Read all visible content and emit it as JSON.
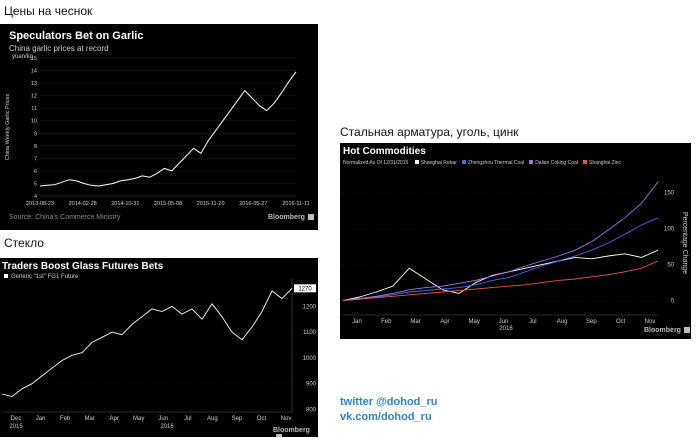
{
  "captions": {
    "garlic": "Цены на чеснок",
    "glass": "Стекло",
    "steel": "Стальная арматура, уголь, цинк"
  },
  "social": {
    "twitter": "twitter @dohod_ru",
    "vk": "vk.com/dohod_ru"
  },
  "colors": {
    "panel_bg": "#000000",
    "line_white": "#ffffff",
    "thermal_coal": "#3d6df2",
    "coking_coal": "#a86ef0",
    "zinc": "#e8553a",
    "social_link": "#2a86c8"
  },
  "garlic": {
    "title": "Speculators Bet on Garlic",
    "subtitle": "China garlic prices at record",
    "unit": "yuan/kg",
    "ylabel": "China Weekly Garlic Prices",
    "source": "Source: China's Commerce Ministry",
    "brand": "Bloomberg"
  },
  "glass": {
    "title": "Traders Boost Glass Futures Bets",
    "legend": "Generic \"1st\" FG1 Future",
    "last_value_label": "1270",
    "brand": "Bloomberg",
    "year_left": "2015",
    "year_mid": "2016"
  },
  "steel": {
    "title": "Hot Commodities",
    "legend_prefix": "Normalized As Of 12/31/2015",
    "ylabel": "Percentage Change",
    "brand": "Bloomberg",
    "year_label": "2016"
  },
  "chart_data": [
    {
      "type": "line",
      "title": "Speculators Bet on Garlic",
      "subtitle": "China garlic prices at record",
      "ylabel": "China Weekly Garlic Prices",
      "yunit": "yuan/kg",
      "x_ticks": [
        "2013-08-23",
        "2014-02-28",
        "2014-10-31",
        "2015-05-08",
        "2015-11-20",
        "2016-05-27",
        "2016-11-11"
      ],
      "y_ticks": [
        4,
        5,
        6,
        7,
        8,
        9,
        10,
        11,
        12,
        13,
        14,
        15
      ],
      "ylim": [
        4,
        15
      ],
      "series": [
        {
          "values": [
            4.8,
            4.85,
            4.9,
            5.1,
            5.3,
            5.2,
            5.0,
            4.85,
            4.8,
            4.9,
            5.0,
            5.2,
            5.3,
            5.4,
            5.6,
            5.5,
            5.8,
            6.2,
            6.0,
            6.6,
            7.2,
            7.8,
            7.4,
            8.4,
            9.2,
            10.0,
            10.8,
            11.6,
            12.4,
            11.8,
            11.2,
            10.8,
            11.4,
            12.2,
            13.1,
            13.9
          ]
        }
      ]
    },
    {
      "type": "line",
      "title": "Traders Boost Glass Futures Bets",
      "x_ticks": [
        "Dec",
        "Jan",
        "Feb",
        "Mar",
        "Apr",
        "May",
        "Jun",
        "Jul",
        "Aug",
        "Sep",
        "Oct",
        "Nov"
      ],
      "y_ticks": [
        800,
        900,
        1000,
        1100,
        1200
      ],
      "ylim": [
        790,
        1310
      ],
      "series": [
        {
          "name": "Generic \"1st\" FG1 Future",
          "values": [
            860,
            850,
            880,
            900,
            930,
            960,
            990,
            1010,
            1020,
            1060,
            1080,
            1100,
            1090,
            1130,
            1160,
            1190,
            1180,
            1200,
            1170,
            1190,
            1150,
            1210,
            1160,
            1100,
            1070,
            1120,
            1180,
            1260,
            1230,
            1270
          ]
        }
      ]
    },
    {
      "type": "line",
      "title": "Hot Commodities",
      "ylabel": "Percentage Change",
      "x_ticks": [
        "Jan",
        "Feb",
        "Mar",
        "Apr",
        "May",
        "Jun",
        "Jul",
        "Aug",
        "Sep",
        "Oct",
        "Nov"
      ],
      "y_ticks": [
        0,
        50,
        100,
        150
      ],
      "ylim": [
        -20,
        180
      ],
      "series": [
        {
          "name": "Shanghai Rebar",
          "values": [
            0,
            5,
            12,
            20,
            45,
            30,
            15,
            10,
            25,
            35,
            40,
            45,
            50,
            55,
            60,
            58,
            62,
            65,
            60,
            70
          ]
        },
        {
          "name": "Zhengzhou Thermal Coal",
          "values": [
            0,
            2,
            5,
            8,
            12,
            14,
            16,
            18,
            22,
            28,
            32,
            40,
            48,
            55,
            62,
            70,
            80,
            92,
            105,
            115
          ]
        },
        {
          "name": "Dalian Coking Coal",
          "values": [
            0,
            3,
            6,
            10,
            15,
            18,
            20,
            24,
            28,
            34,
            40,
            48,
            55,
            62,
            70,
            82,
            98,
            115,
            135,
            165
          ]
        },
        {
          "name": "Shanghai Zinc",
          "values": [
            0,
            2,
            4,
            6,
            8,
            10,
            12,
            14,
            16,
            18,
            20,
            22,
            25,
            28,
            30,
            33,
            36,
            40,
            45,
            55
          ]
        }
      ]
    }
  ]
}
